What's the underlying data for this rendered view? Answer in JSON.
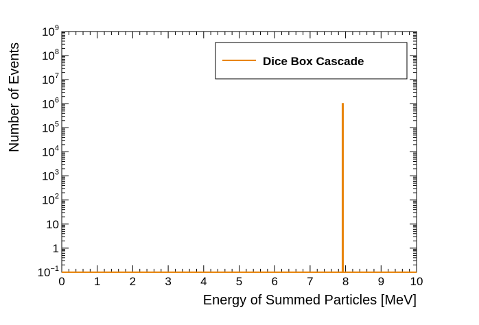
{
  "chart_data": {
    "type": "line",
    "title": "",
    "xlabel": "Energy of Summed Particles [MeV]",
    "ylabel": "Number of Events",
    "xlim": [
      0,
      10
    ],
    "ylim": [
      0.1,
      1000000000
    ],
    "y_scale": "log",
    "grid": false,
    "legend_position": "top-right",
    "x_ticks": [
      0,
      1,
      2,
      3,
      4,
      5,
      6,
      7,
      8,
      9,
      10
    ],
    "x_tick_labels": [
      "0",
      "1",
      "2",
      "3",
      "4",
      "5",
      "6",
      "7",
      "8",
      "9",
      "10"
    ],
    "y_ticks": [
      {
        "value": 0.1,
        "base": "10",
        "exp": "−1"
      },
      {
        "value": 1,
        "base": "1",
        "exp": ""
      },
      {
        "value": 10,
        "base": "10",
        "exp": ""
      },
      {
        "value": 100,
        "base": "10",
        "exp": "2"
      },
      {
        "value": 1000,
        "base": "10",
        "exp": "3"
      },
      {
        "value": 10000,
        "base": "10",
        "exp": "4"
      },
      {
        "value": 100000,
        "base": "10",
        "exp": "5"
      },
      {
        "value": 1000000,
        "base": "10",
        "exp": "6"
      },
      {
        "value": 10000000,
        "base": "10",
        "exp": "7"
      },
      {
        "value": 100000000,
        "base": "10",
        "exp": "8"
      },
      {
        "value": 1000000000,
        "base": "10",
        "exp": "9"
      }
    ],
    "series": [
      {
        "name": "Dice Box Cascade",
        "color": "#e8850c",
        "histogram": {
          "baseline": 0.1,
          "peak_x": 7.92,
          "peak_width": 0.02,
          "peak_value": 1000000
        }
      }
    ]
  }
}
